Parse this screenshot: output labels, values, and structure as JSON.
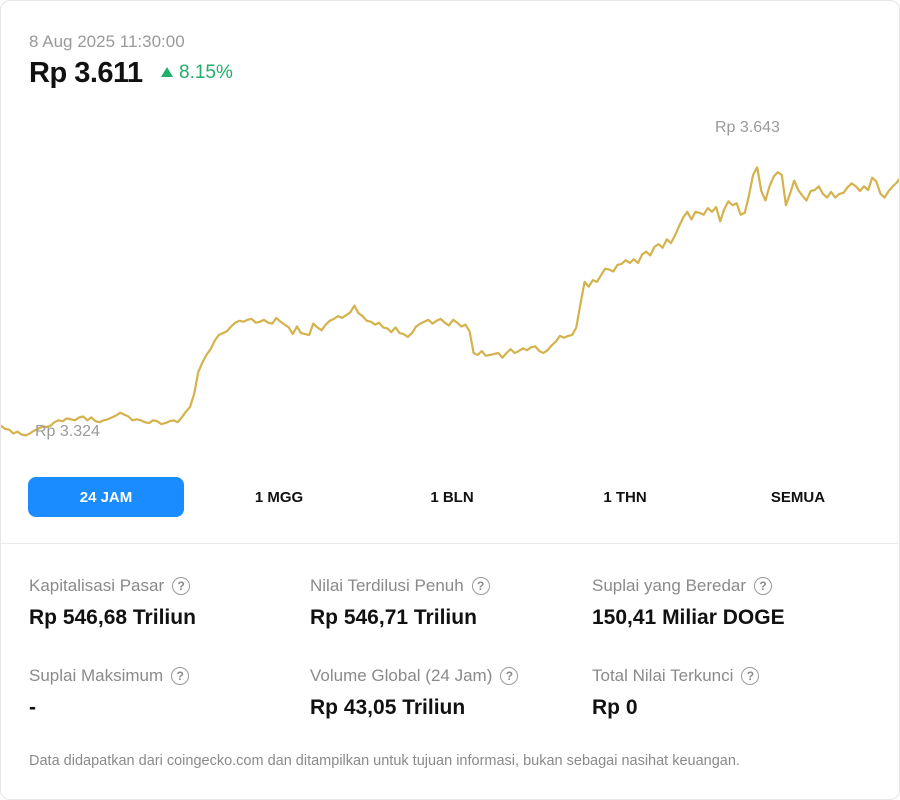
{
  "header": {
    "timestamp": "8 Aug 2025 11:30:00",
    "price": "Rp 3.611",
    "change": "8.15%",
    "change_color": "#1fae6b"
  },
  "chart": {
    "max_label": "Rp 3.643",
    "min_label": "Rp 3.324",
    "line_color": "#d4b24c"
  },
  "chart_data": {
    "type": "line",
    "series": [
      {
        "values": [
          3337,
          3334,
          3333,
          3329,
          3331,
          3328,
          3327,
          3329,
          3332,
          3334,
          3336,
          3336,
          3337,
          3341,
          3343,
          3342,
          3345,
          3344,
          3343,
          3346,
          3347,
          3343,
          3346,
          3342,
          3341,
          3343,
          3344,
          3346,
          3348,
          3351,
          3349,
          3347,
          3343,
          3344,
          3343,
          3341,
          3340,
          3343,
          3342,
          3339,
          3340,
          3342,
          3343,
          3341,
          3346,
          3352,
          3357,
          3371,
          3394,
          3404,
          3412,
          3418,
          3427,
          3433,
          3435,
          3437,
          3442,
          3446,
          3448,
          3447,
          3449,
          3450,
          3446,
          3447,
          3449,
          3446,
          3445,
          3451,
          3447,
          3444,
          3441,
          3434,
          3442,
          3435,
          3434,
          3433,
          3445,
          3441,
          3438,
          3444,
          3448,
          3450,
          3453,
          3451,
          3454,
          3457,
          3464,
          3456,
          3453,
          3448,
          3447,
          3444,
          3446,
          3441,
          3440,
          3436,
          3441,
          3435,
          3434,
          3431,
          3435,
          3442,
          3445,
          3447,
          3449,
          3445,
          3448,
          3450,
          3446,
          3443,
          3449,
          3446,
          3442,
          3444,
          3437,
          3414,
          3412,
          3416,
          3411,
          3412,
          3413,
          3414,
          3409,
          3414,
          3418,
          3414,
          3416,
          3419,
          3417,
          3420,
          3421,
          3416,
          3414,
          3417,
          3422,
          3426,
          3432,
          3430,
          3432,
          3433,
          3441,
          3466,
          3489,
          3484,
          3491,
          3489,
          3496,
          3503,
          3502,
          3500,
          3507,
          3508,
          3512,
          3509,
          3513,
          3509,
          3518,
          3521,
          3517,
          3526,
          3529,
          3525,
          3534,
          3530,
          3538,
          3548,
          3557,
          3563,
          3555,
          3563,
          3562,
          3560,
          3567,
          3563,
          3568,
          3553,
          3566,
          3574,
          3570,
          3572,
          3560,
          3562,
          3580,
          3602,
          3610,
          3585,
          3575,
          3590,
          3600,
          3605,
          3602,
          3570,
          3582,
          3596,
          3586,
          3580,
          3575,
          3585,
          3586,
          3590,
          3582,
          3578,
          3584,
          3578,
          3582,
          3583,
          3589,
          3593,
          3590,
          3585,
          3590,
          3586,
          3599,
          3595,
          3582,
          3578,
          3585,
          3590,
          3594,
          3600
        ]
      }
    ],
    "ylim": [
      3300,
      3680
    ],
    "ymax_label": "Rp 3.643",
    "ymin_label": "Rp 3.324"
  },
  "tabs": [
    {
      "label": "24 JAM",
      "active": true
    },
    {
      "label": "1 MGG",
      "active": false
    },
    {
      "label": "1 BLN",
      "active": false
    },
    {
      "label": "1 THN",
      "active": false
    },
    {
      "label": "SEMUA",
      "active": false
    }
  ],
  "stats": {
    "market_cap": {
      "label": "Kapitalisasi Pasar",
      "value": "Rp 546,68 Triliun"
    },
    "fdv": {
      "label": "Nilai Terdilusi Penuh",
      "value": "Rp 546,71 Triliun"
    },
    "circulating_supply": {
      "label": "Suplai yang Beredar",
      "value": "150,41 Miliar DOGE"
    },
    "max_supply": {
      "label": "Suplai Maksimum",
      "value": "-"
    },
    "global_volume": {
      "label": "Volume Global (24 Jam)",
      "value": "Rp 43,05 Triliun"
    },
    "tvl": {
      "label": "Total Nilai Terkunci",
      "value": "Rp 0"
    }
  },
  "help_glyph": "?",
  "footer": {
    "disclaimer": "Data didapatkan dari coingecko.com dan ditampilkan untuk tujuan informasi, bukan sebagai nasihat keuangan."
  }
}
